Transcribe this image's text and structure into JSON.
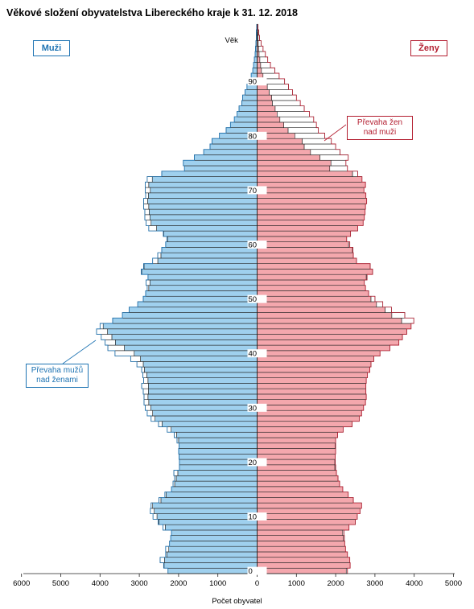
{
  "chart_data": {
    "type": "bar",
    "title": "Věkové složení obyvatelstva Libereckého kraje k 31. 12. 2018",
    "xlabel": "Počet obyvatel",
    "ylabel": "Věk",
    "left_label": "Muži",
    "right_label": "Ženy",
    "callout_women": "Převaha žen nad muži",
    "callout_men": "Převaha mužů nad ženami",
    "x_ticks_men": [
      6000,
      5000,
      4000,
      3000,
      2000,
      1000
    ],
    "x_ticks_women": [
      0,
      1000,
      2000,
      3000,
      4000,
      5000
    ],
    "age_ticks": [
      0,
      10,
      20,
      30,
      40,
      50,
      60,
      70,
      80,
      90
    ],
    "xlim_men": [
      6000,
      0
    ],
    "xlim_women": [
      0,
      5000
    ],
    "age_range": [
      0,
      100
    ],
    "colors": {
      "men_fill": "#9fd0ee",
      "women_fill": "#f4a7ad",
      "men_line": "#1f74b3",
      "women_line": "#b31e30",
      "bar_outline": "#222222"
    },
    "ages": [
      0,
      1,
      2,
      3,
      4,
      5,
      6,
      7,
      8,
      9,
      10,
      11,
      12,
      13,
      14,
      15,
      16,
      17,
      18,
      19,
      20,
      21,
      22,
      23,
      24,
      25,
      26,
      27,
      28,
      29,
      30,
      31,
      32,
      33,
      34,
      35,
      36,
      37,
      38,
      39,
      40,
      41,
      42,
      43,
      44,
      45,
      46,
      47,
      48,
      49,
      50,
      51,
      52,
      53,
      54,
      55,
      56,
      57,
      58,
      59,
      60,
      61,
      62,
      63,
      64,
      65,
      66,
      67,
      68,
      69,
      70,
      71,
      72,
      73,
      74,
      75,
      76,
      77,
      78,
      79,
      80,
      81,
      82,
      83,
      84,
      85,
      86,
      87,
      88,
      89,
      90,
      91,
      92,
      93,
      94,
      95,
      96,
      97,
      98,
      99,
      100
    ],
    "series": [
      {
        "name": "Muži",
        "values": [
          2270,
          2380,
          2470,
          2330,
          2330,
          2230,
          2200,
          2180,
          2400,
          2520,
          2650,
          2720,
          2700,
          2500,
          2350,
          2180,
          2140,
          2100,
          2120,
          1980,
          1980,
          1990,
          2000,
          1990,
          2040,
          2110,
          2290,
          2510,
          2700,
          2800,
          2850,
          2880,
          2880,
          2900,
          2940,
          2890,
          2910,
          2940,
          3060,
          3220,
          3620,
          3800,
          3870,
          3970,
          4090,
          4000,
          3680,
          3430,
          3260,
          3040,
          2900,
          2840,
          2800,
          2830,
          2780,
          2950,
          2890,
          2660,
          2530,
          2430,
          2330,
          2300,
          2390,
          2760,
          2830,
          2860,
          2860,
          2890,
          2890,
          2840,
          2850,
          2850,
          2800,
          2430,
          1850,
          1880,
          1600,
          1360,
          1200,
          1150,
          960,
          790,
          680,
          580,
          510,
          460,
          390,
          370,
          310,
          260,
          210,
          150,
          110,
          90,
          70,
          50,
          40,
          30,
          20,
          20,
          10
        ]
      },
      {
        "name": "Ženy",
        "values": [
          2300,
          2370,
          2360,
          2300,
          2250,
          2230,
          2220,
          2210,
          2340,
          2500,
          2550,
          2620,
          2660,
          2450,
          2320,
          2180,
          2100,
          2060,
          2020,
          2000,
          1990,
          1990,
          2000,
          2000,
          2000,
          2050,
          2190,
          2420,
          2600,
          2660,
          2710,
          2760,
          2780,
          2770,
          2770,
          2780,
          2810,
          2870,
          2900,
          2970,
          3130,
          3380,
          3610,
          3700,
          3810,
          3920,
          3990,
          3760,
          3420,
          3200,
          3000,
          2840,
          2760,
          2730,
          2800,
          2940,
          2880,
          2530,
          2450,
          2440,
          2360,
          2280,
          2380,
          2560,
          2700,
          2730,
          2750,
          2760,
          2790,
          2770,
          2720,
          2760,
          2670,
          2560,
          2300,
          2260,
          2320,
          2110,
          2000,
          1890,
          1720,
          1560,
          1510,
          1440,
          1330,
          1200,
          1100,
          1000,
          900,
          800,
          700,
          560,
          450,
          340,
          270,
          210,
          150,
          100,
          60,
          40,
          20
        ]
      }
    ]
  }
}
